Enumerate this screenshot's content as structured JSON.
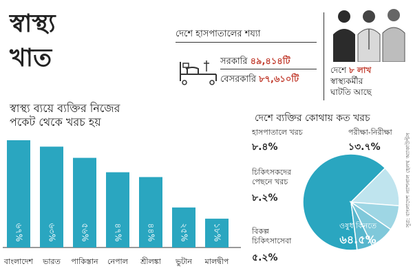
{
  "header": {
    "title_line1": "স্বাস্থ্য",
    "title_line2": "খাত",
    "subtitle_line1": "স্বাস্থ্য ব্যয়ে ব্যক্তির নিজের",
    "subtitle_line2": "পকেট থেকে খরচ হয়"
  },
  "beds": {
    "title": "দেশে হাসপাতালের শয্যা",
    "public_label": "সরকারি",
    "public_value": "৪৯,৪১৪টি",
    "private_label": "বেসরকারি",
    "private_value": "৮৭,৬১০টি",
    "icon": "hospital-bed-icon"
  },
  "shortage": {
    "prefix": "দেশে",
    "value": "৮ লাখ",
    "line2": "স্বাস্থ্যকর্মীর",
    "line3": "ঘাটতি আছে",
    "icon": "health-workers-icon"
  },
  "credit": "সূত্র: বাংলাদেশ ন্যাশনাল হেলথ অ্যাকাউন্টস",
  "colors": {
    "bar": "#2aa6c0",
    "accent": "#c0392b",
    "pie_main": "#2aa6c0",
    "pie_light": [
      "#bfe4ee",
      "#9ed6e4",
      "#7fc8da",
      "#57b6cd"
    ]
  },
  "chart_data": [
    {
      "type": "bar",
      "title": "",
      "categories": [
        "বাংলাদেশ",
        "ভারত",
        "পাকিস্তান",
        "নেপাল",
        "শ্রীলঙ্কা",
        "ভুটান",
        "মালদ্বীপ"
      ],
      "values": [
        67,
        63,
        56,
        47,
        44,
        25,
        18
      ],
      "value_labels": [
        "৬৭%",
        "৬৩%",
        "৫৬%",
        "৪৭%",
        "৪৪%",
        "২৫%",
        "১৮%"
      ],
      "ylim": [
        0,
        70
      ]
    },
    {
      "type": "pie",
      "title": "দেশে ব্যক্তির কোথায় কত খরচ",
      "slices": [
        {
          "label": "ওষুধ কিনতে",
          "value": 64.5,
          "value_label": "৬৪.৫%"
        },
        {
          "label": "পরীক্ষা-নিরীক্ষা",
          "value": 13.7,
          "value_label": "১৩.৭%"
        },
        {
          "label": "হাসপাতালে খরচ",
          "value": 8.4,
          "value_label": "৮.৪%"
        },
        {
          "label": "চিকিৎসকদের পেছনে খরচ",
          "value": 8.2,
          "value_label": "৮.২%"
        },
        {
          "label": "বিকল্প চিকিৎসাসেবা",
          "value": 5.2,
          "value_label": "৫.২%"
        }
      ]
    }
  ]
}
